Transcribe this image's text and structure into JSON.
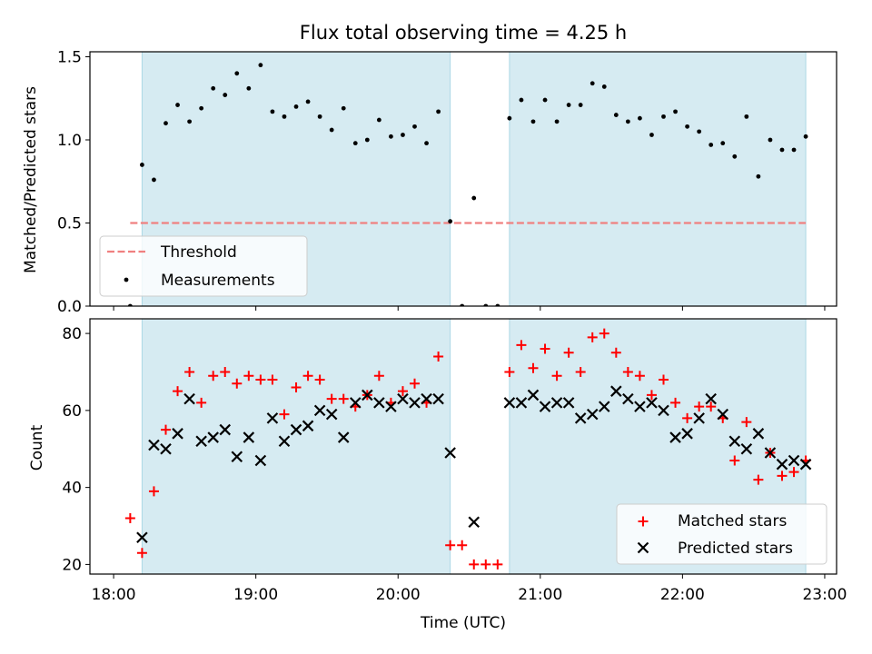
{
  "chart_data": [
    {
      "type": "scatter",
      "title": "Flux total observing time = 4.25 h",
      "xlabel": "",
      "ylabel": "Matched/Predicted stars",
      "xlim": [
        "17:50",
        "23:05"
      ],
      "ylim": [
        0,
        1.53
      ],
      "yticks": [
        0.0,
        0.5,
        1.0,
        1.5
      ],
      "ytick_labels": [
        "0.0",
        "0.5",
        "1.0",
        "1.5"
      ],
      "shaded_intervals": [
        [
          "18:12",
          "20:22"
        ],
        [
          "20:47",
          "22:52"
        ]
      ],
      "shade_color": "#add8e6",
      "threshold": {
        "name": "Threshold",
        "y": 0.5,
        "x_range": [
          "18:07",
          "22:52"
        ],
        "color": "#f08080"
      },
      "legend": {
        "position": "lower left",
        "entries": [
          "Threshold",
          "Measurements"
        ]
      },
      "series": [
        {
          "name": "Measurements",
          "marker": "dot",
          "color": "#000000",
          "points": [
            [
              "18:07",
              0.0
            ],
            [
              "18:12",
              0.85
            ],
            [
              "18:17",
              0.76
            ],
            [
              "18:22",
              1.1
            ],
            [
              "18:27",
              1.21
            ],
            [
              "18:32",
              1.11
            ],
            [
              "18:37",
              1.19
            ],
            [
              "18:42",
              1.31
            ],
            [
              "18:47",
              1.27
            ],
            [
              "18:52",
              1.4
            ],
            [
              "18:57",
              1.31
            ],
            [
              "19:02",
              1.45
            ],
            [
              "19:07",
              1.17
            ],
            [
              "19:12",
              1.14
            ],
            [
              "19:17",
              1.2
            ],
            [
              "19:22",
              1.23
            ],
            [
              "19:27",
              1.14
            ],
            [
              "19:32",
              1.06
            ],
            [
              "19:37",
              1.19
            ],
            [
              "19:42",
              0.98
            ],
            [
              "19:47",
              1.0
            ],
            [
              "19:52",
              1.12
            ],
            [
              "19:57",
              1.02
            ],
            [
              "20:02",
              1.03
            ],
            [
              "20:07",
              1.08
            ],
            [
              "20:12",
              0.98
            ],
            [
              "20:17",
              1.17
            ],
            [
              "20:22",
              0.51
            ],
            [
              "20:27",
              0.0
            ],
            [
              "20:32",
              0.65
            ],
            [
              "20:37",
              0.0
            ],
            [
              "20:42",
              0.0
            ],
            [
              "20:47",
              1.13
            ],
            [
              "20:52",
              1.24
            ],
            [
              "20:57",
              1.11
            ],
            [
              "21:02",
              1.24
            ],
            [
              "21:07",
              1.11
            ],
            [
              "21:12",
              1.21
            ],
            [
              "21:17",
              1.21
            ],
            [
              "21:22",
              1.34
            ],
            [
              "21:27",
              1.32
            ],
            [
              "21:32",
              1.15
            ],
            [
              "21:37",
              1.11
            ],
            [
              "21:42",
              1.13
            ],
            [
              "21:47",
              1.03
            ],
            [
              "21:52",
              1.14
            ],
            [
              "21:57",
              1.17
            ],
            [
              "22:02",
              1.08
            ],
            [
              "22:07",
              1.05
            ],
            [
              "22:12",
              0.97
            ],
            [
              "22:17",
              0.98
            ],
            [
              "22:22",
              0.9
            ],
            [
              "22:27",
              1.14
            ],
            [
              "22:32",
              0.78
            ],
            [
              "22:37",
              1.0
            ],
            [
              "22:42",
              0.94
            ],
            [
              "22:47",
              0.94
            ],
            [
              "22:52",
              1.02
            ]
          ]
        }
      ]
    },
    {
      "type": "scatter",
      "title": "",
      "xlabel": "Time (UTC)",
      "ylabel": "Count",
      "xlim": [
        "17:50",
        "23:05"
      ],
      "ylim": [
        17.5,
        83.8
      ],
      "yticks": [
        20,
        40,
        60,
        80
      ],
      "ytick_labels": [
        "20",
        "40",
        "60",
        "80"
      ],
      "xticks": [
        "18:00",
        "19:00",
        "20:00",
        "21:00",
        "22:00",
        "23:00"
      ],
      "xtick_labels": [
        "18:00",
        "19:00",
        "20:00",
        "21:00",
        "22:00",
        "23:00"
      ],
      "shaded_intervals": [
        [
          "18:12",
          "20:22"
        ],
        [
          "20:47",
          "22:52"
        ]
      ],
      "shade_color": "#add8e6",
      "legend": {
        "position": "lower right",
        "entries": [
          "Matched stars",
          "Predicted stars"
        ]
      },
      "series": [
        {
          "name": "Matched stars",
          "marker": "plus",
          "color": "#ff0000",
          "points": [
            [
              "18:07",
              32
            ],
            [
              "18:12",
              23
            ],
            [
              "18:17",
              39
            ],
            [
              "18:22",
              55
            ],
            [
              "18:27",
              65
            ],
            [
              "18:32",
              70
            ],
            [
              "18:37",
              62
            ],
            [
              "18:42",
              69
            ],
            [
              "18:47",
              70
            ],
            [
              "18:52",
              67
            ],
            [
              "18:57",
              69
            ],
            [
              "19:02",
              68
            ],
            [
              "19:07",
              68
            ],
            [
              "19:12",
              59
            ],
            [
              "19:17",
              66
            ],
            [
              "19:22",
              69
            ],
            [
              "19:27",
              68
            ],
            [
              "19:32",
              63
            ],
            [
              "19:37",
              63
            ],
            [
              "19:42",
              61
            ],
            [
              "19:47",
              64
            ],
            [
              "19:52",
              69
            ],
            [
              "19:57",
              62
            ],
            [
              "20:02",
              65
            ],
            [
              "20:07",
              67
            ],
            [
              "20:12",
              62
            ],
            [
              "20:17",
              74
            ],
            [
              "20:22",
              25
            ],
            [
              "20:27",
              25
            ],
            [
              "20:32",
              20
            ],
            [
              "20:37",
              20
            ],
            [
              "20:42",
              20
            ],
            [
              "20:47",
              70
            ],
            [
              "20:52",
              77
            ],
            [
              "20:57",
              71
            ],
            [
              "21:02",
              76
            ],
            [
              "21:07",
              69
            ],
            [
              "21:12",
              75
            ],
            [
              "21:17",
              70
            ],
            [
              "21:22",
              79
            ],
            [
              "21:27",
              80
            ],
            [
              "21:32",
              75
            ],
            [
              "21:37",
              70
            ],
            [
              "21:42",
              69
            ],
            [
              "21:47",
              64
            ],
            [
              "21:52",
              68
            ],
            [
              "21:57",
              62
            ],
            [
              "22:02",
              58
            ],
            [
              "22:07",
              61
            ],
            [
              "22:12",
              61
            ],
            [
              "22:17",
              58
            ],
            [
              "22:22",
              47
            ],
            [
              "22:27",
              57
            ],
            [
              "22:32",
              42
            ],
            [
              "22:37",
              49
            ],
            [
              "22:42",
              43
            ],
            [
              "22:47",
              44
            ],
            [
              "22:52",
              47
            ]
          ]
        },
        {
          "name": "Predicted stars",
          "marker": "x",
          "color": "#000000",
          "points": [
            [
              "18:12",
              27
            ],
            [
              "18:17",
              51
            ],
            [
              "18:22",
              50
            ],
            [
              "18:27",
              54
            ],
            [
              "18:32",
              63
            ],
            [
              "18:37",
              52
            ],
            [
              "18:42",
              53
            ],
            [
              "18:47",
              55
            ],
            [
              "18:52",
              48
            ],
            [
              "18:57",
              53
            ],
            [
              "19:02",
              47
            ],
            [
              "19:07",
              58
            ],
            [
              "19:12",
              52
            ],
            [
              "19:17",
              55
            ],
            [
              "19:22",
              56
            ],
            [
              "19:27",
              60
            ],
            [
              "19:32",
              59
            ],
            [
              "19:37",
              53
            ],
            [
              "19:42",
              62
            ],
            [
              "19:47",
              64
            ],
            [
              "19:52",
              62
            ],
            [
              "19:57",
              61
            ],
            [
              "20:02",
              63
            ],
            [
              "20:07",
              62
            ],
            [
              "20:12",
              63
            ],
            [
              "20:17",
              63
            ],
            [
              "20:22",
              49
            ],
            [
              "20:32",
              31
            ],
            [
              "20:47",
              62
            ],
            [
              "20:52",
              62
            ],
            [
              "20:57",
              64
            ],
            [
              "21:02",
              61
            ],
            [
              "21:07",
              62
            ],
            [
              "21:12",
              62
            ],
            [
              "21:17",
              58
            ],
            [
              "21:22",
              59
            ],
            [
              "21:27",
              61
            ],
            [
              "21:32",
              65
            ],
            [
              "21:37",
              63
            ],
            [
              "21:42",
              61
            ],
            [
              "21:47",
              62
            ],
            [
              "21:52",
              60
            ],
            [
              "21:57",
              53
            ],
            [
              "22:02",
              54
            ],
            [
              "22:07",
              58
            ],
            [
              "22:12",
              63
            ],
            [
              "22:17",
              59
            ],
            [
              "22:22",
              52
            ],
            [
              "22:27",
              50
            ],
            [
              "22:32",
              54
            ],
            [
              "22:37",
              49
            ],
            [
              "22:42",
              46
            ],
            [
              "22:47",
              47
            ],
            [
              "22:52",
              46
            ]
          ]
        }
      ]
    }
  ]
}
